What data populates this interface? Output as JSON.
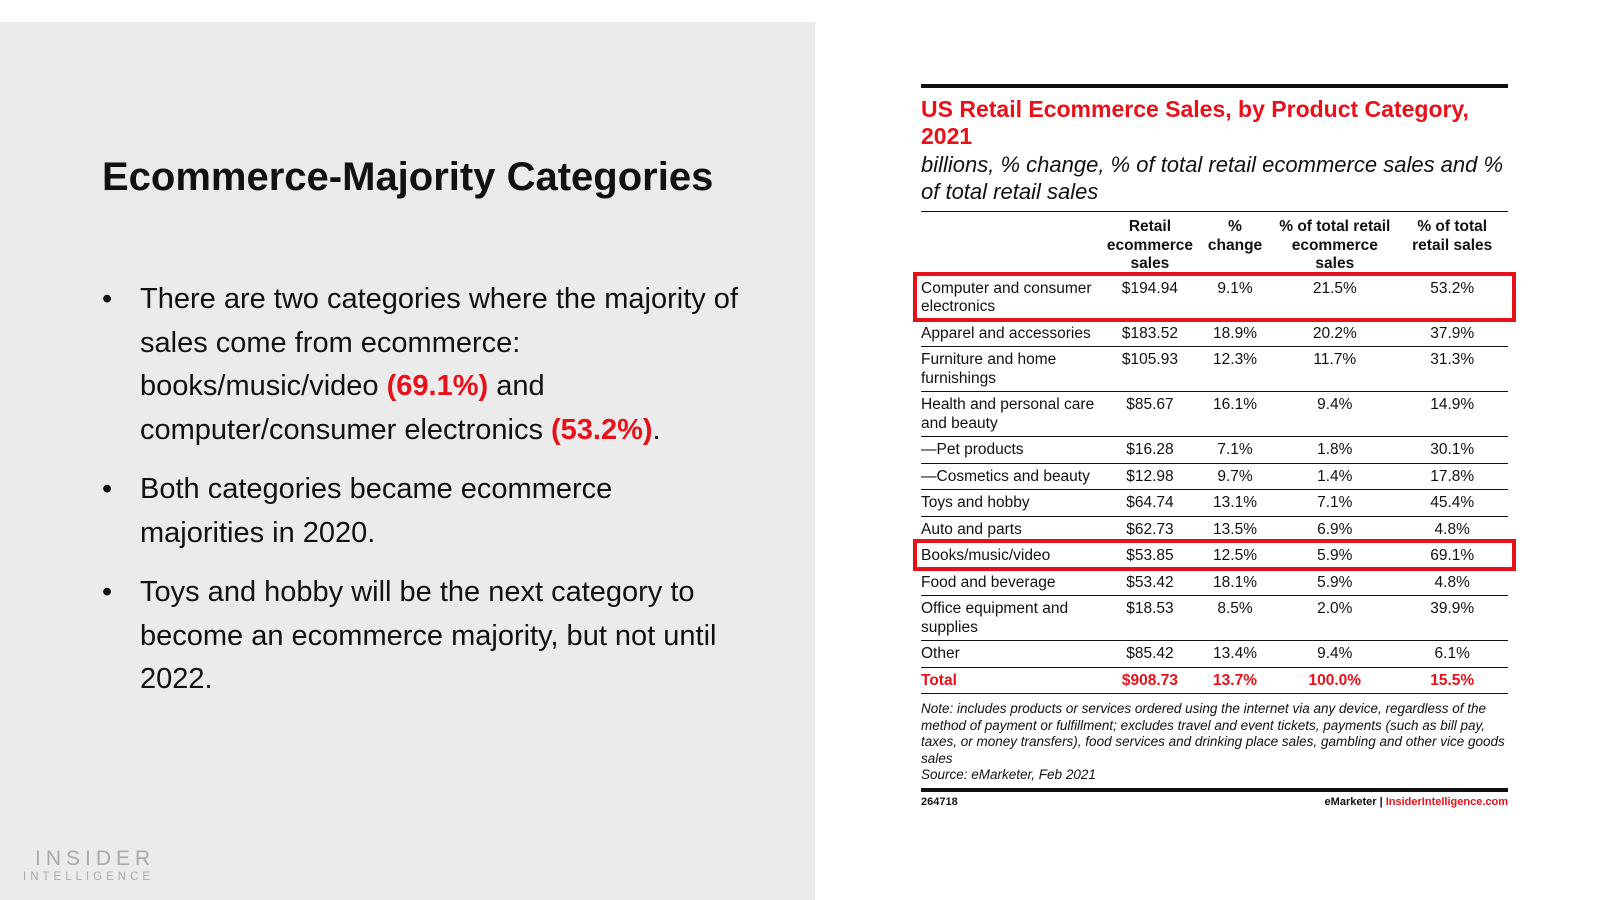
{
  "slide": {
    "title": "Ecommerce-Majority Categories",
    "bullets": [
      {
        "parts": [
          "There are two categories where the majority of sales come from ecommerce: books/music/video ",
          "(69.1%)",
          " and computer/consumer electronics ",
          "(53.2%)",
          "."
        ]
      },
      {
        "text": "Both categories became ecommerce majorities in 2020."
      },
      {
        "text": "Toys and hobby will be the next category to become an ecommerce majority, but not until 2022."
      }
    ],
    "logo": {
      "line1": "INSIDER",
      "line2": "INTELLIGENCE"
    }
  },
  "chart": {
    "title": "US Retail Ecommerce Sales, by Product Category, 2021",
    "subtitle": "billions, % change, % of total retail ecommerce sales and % of total retail sales",
    "headers": [
      "",
      "Retail ecommerce sales",
      "% change",
      "% of total retail ecommerce sales",
      "% of total retail sales"
    ],
    "rows": [
      [
        "Computer and consumer electronics",
        "$194.94",
        "9.1%",
        "21.5%",
        "53.2%"
      ],
      [
        "Apparel and accessories",
        "$183.52",
        "18.9%",
        "20.2%",
        "37.9%"
      ],
      [
        "Furniture and home furnishings",
        "$105.93",
        "12.3%",
        "11.7%",
        "31.3%"
      ],
      [
        "Health and personal care and beauty",
        "$85.67",
        "16.1%",
        "9.4%",
        "14.9%"
      ],
      [
        "—Pet products",
        "$16.28",
        "7.1%",
        "1.8%",
        "30.1%"
      ],
      [
        "—Cosmetics and beauty",
        "$12.98",
        "9.7%",
        "1.4%",
        "17.8%"
      ],
      [
        "Toys and hobby",
        "$64.74",
        "13.1%",
        "7.1%",
        "45.4%"
      ],
      [
        "Auto and parts",
        "$62.73",
        "13.5%",
        "6.9%",
        "4.8%"
      ],
      [
        "Books/music/video",
        "$53.85",
        "12.5%",
        "5.9%",
        "69.1%"
      ],
      [
        "Food and beverage",
        "$53.42",
        "18.1%",
        "5.9%",
        "4.8%"
      ],
      [
        "Office equipment and supplies",
        "$18.53",
        "8.5%",
        "2.0%",
        "39.9%"
      ],
      [
        "Other",
        "$85.42",
        "13.4%",
        "9.4%",
        "6.1%"
      ]
    ],
    "total": [
      "Total",
      "$908.73",
      "13.7%",
      "100.0%",
      "15.5%"
    ],
    "highlighted_rows": [
      "Computer and consumer electronics",
      "Books/music/video"
    ],
    "highlight_color": "#e8111a",
    "note": "Note: includes products or services ordered using the internet via any device, regardless of the method of payment or fulfillment; excludes travel and event tickets, payments (such as bill pay, taxes, or money transfers), food services and drinking place sales, gambling and other vice goods sales",
    "source": "Source: eMarketer, Feb 2021",
    "chart_id": "264718",
    "brand": "eMarketer",
    "separator": "|",
    "site": "InsiderIntelligence.com"
  }
}
